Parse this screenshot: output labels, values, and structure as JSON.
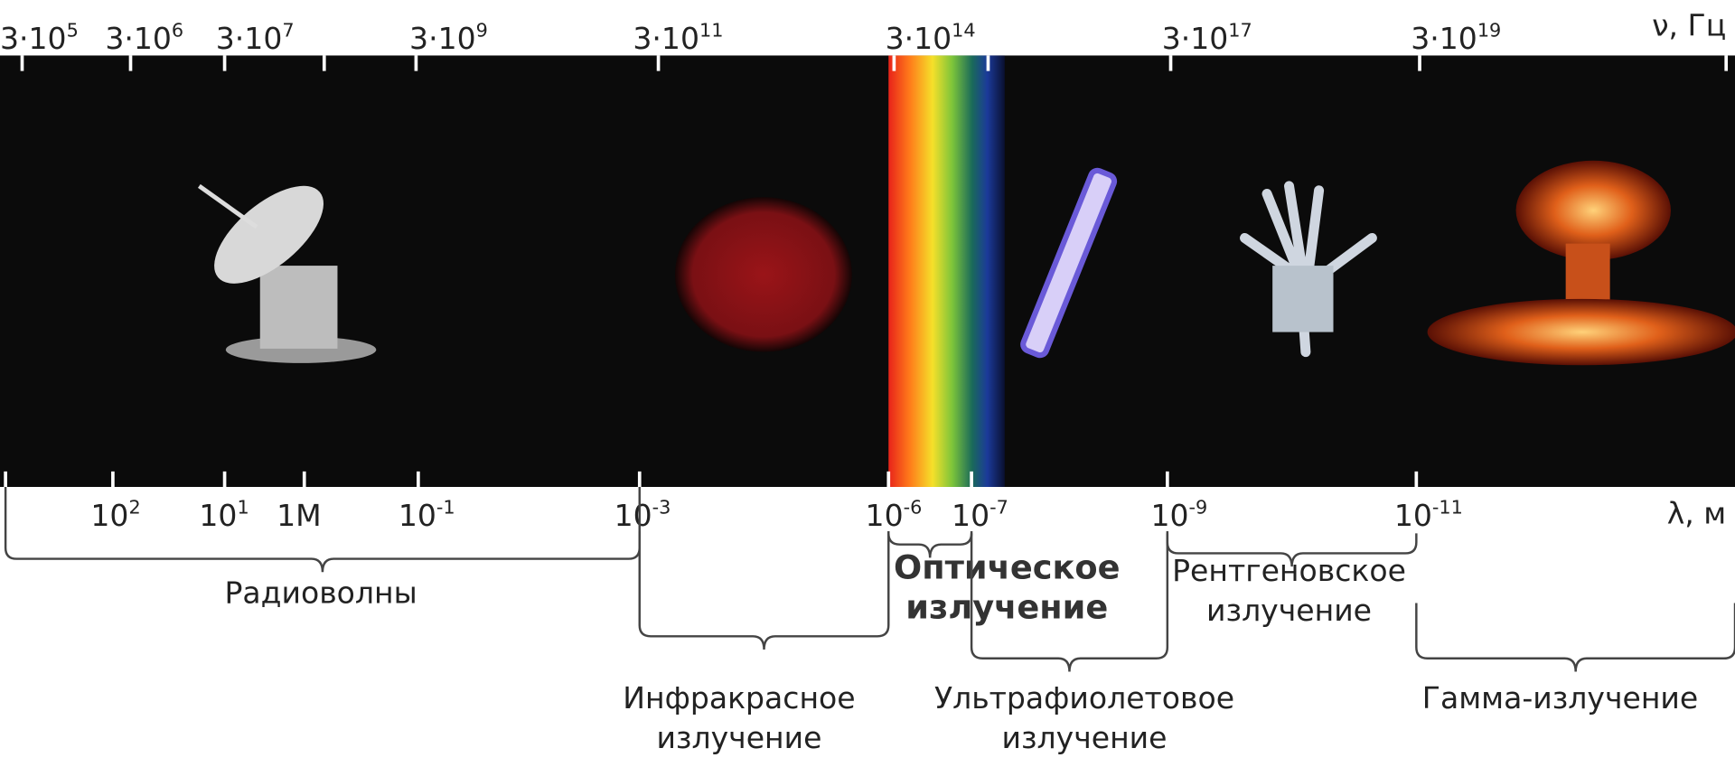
{
  "frequency_axis": {
    "label": "ν, Гц",
    "ticks": [
      {
        "base": "3·10",
        "exp": "5"
      },
      {
        "base": "3·10",
        "exp": "6"
      },
      {
        "base": "3·10",
        "exp": "7"
      },
      {
        "base": "3·10",
        "exp": "9"
      },
      {
        "base": "3·10",
        "exp": "11"
      },
      {
        "base": "3·10",
        "exp": "14"
      },
      {
        "base": "3·10",
        "exp": "17"
      },
      {
        "base": "3·10",
        "exp": "19"
      }
    ]
  },
  "wavelength_axis": {
    "label": "λ, м",
    "ticks": [
      {
        "base": "10",
        "exp": "2"
      },
      {
        "base": "10",
        "exp": "1"
      },
      {
        "base": "1M"
      },
      {
        "base": "10",
        "exp": "-1"
      },
      {
        "base": "10",
        "exp": "-3"
      },
      {
        "base": "10",
        "exp": "-6"
      },
      {
        "base": "10",
        "exp": "-7"
      },
      {
        "base": "10",
        "exp": "-9"
      },
      {
        "base": "10",
        "exp": "-11"
      }
    ]
  },
  "bands": [
    {
      "lines": [
        "Радиоволны"
      ]
    },
    {
      "lines": [
        "Инфракрасное",
        "излучение"
      ]
    },
    {
      "lines": [
        "Оптическое",
        "излучение"
      ]
    },
    {
      "lines": [
        "Ультрафиолетовое",
        "излучение"
      ]
    },
    {
      "lines": [
        "Рентгеновское",
        "излучение"
      ]
    },
    {
      "lines": [
        "Гамма-излучение"
      ]
    }
  ]
}
